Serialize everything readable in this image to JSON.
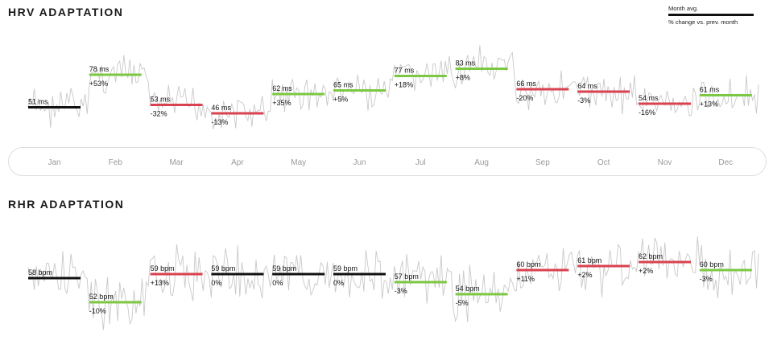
{
  "hrv": {
    "title": "HRV ADAPTATION"
  },
  "rhr": {
    "title": "RHR ADAPTATION"
  },
  "legend": {
    "avg_label": "Month avg.",
    "change_label": "% change vs. prev. month"
  },
  "colors": {
    "up": "#7cc843",
    "down": "#d9424f",
    "neutral": "#111111",
    "trace": "#c9c9c9"
  },
  "months": [
    "Jan",
    "Feb",
    "Mar",
    "Apr",
    "May",
    "Jun",
    "Jul",
    "Aug",
    "Sep",
    "Oct",
    "Nov",
    "Dec"
  ],
  "chart_data": [
    {
      "type": "line",
      "title": "HRV ADAPTATION",
      "unit": "ms",
      "categories": [
        "Jan",
        "Feb",
        "Mar",
        "Apr",
        "May",
        "Jun",
        "Jul",
        "Aug",
        "Sep",
        "Oct",
        "Nov",
        "Dec"
      ],
      "series": [
        {
          "name": "Month avg.",
          "values": [
            51,
            78,
            53,
            46,
            62,
            65,
            77,
            83,
            66,
            64,
            54,
            61
          ]
        }
      ],
      "value_labels": [
        "51 ms",
        "78 ms",
        "53 ms",
        "46 ms",
        "62 ms",
        "65 ms",
        "77 ms",
        "83 ms",
        "66 ms",
        "64 ms",
        "54 ms",
        "61 ms"
      ],
      "change_labels": [
        "",
        "+53%",
        "-32%",
        "-13%",
        "+35%",
        "+5%",
        "+18%",
        "+8%",
        "-20%",
        "-3%",
        "-16%",
        "+13%"
      ],
      "trend": [
        "neutral",
        "up",
        "down",
        "down",
        "up",
        "up",
        "up",
        "up",
        "down",
        "down",
        "down",
        "up"
      ],
      "ylim": [
        30,
        100
      ]
    },
    {
      "type": "line",
      "title": "RHR ADAPTATION",
      "unit": "bpm",
      "categories": [
        "Jan",
        "Feb",
        "Mar",
        "Apr",
        "May",
        "Jun",
        "Jul",
        "Aug",
        "Sep",
        "Oct",
        "Nov",
        "Dec"
      ],
      "series": [
        {
          "name": "Month avg.",
          "values": [
            58,
            52,
            59,
            59,
            59,
            59,
            57,
            54,
            60,
            61,
            62,
            60
          ]
        }
      ],
      "value_labels": [
        "58 bpm",
        "52 bpm",
        "59 bpm",
        "59 bpm",
        "59 bpm",
        "59 bpm",
        "57 bpm",
        "54 bpm",
        "60 bpm",
        "61 bpm",
        "62 bpm",
        "60 bpm"
      ],
      "change_labels": [
        "",
        "-10%",
        "+13%",
        "0%",
        "0%",
        "0%",
        "-3%",
        "-5%",
        "+11%",
        "+2%",
        "+2%",
        "-3%"
      ],
      "trend": [
        "neutral",
        "up",
        "down",
        "neutral",
        "neutral",
        "neutral",
        "up",
        "up",
        "down",
        "down",
        "down",
        "up"
      ],
      "ylim": [
        45,
        70
      ]
    }
  ]
}
